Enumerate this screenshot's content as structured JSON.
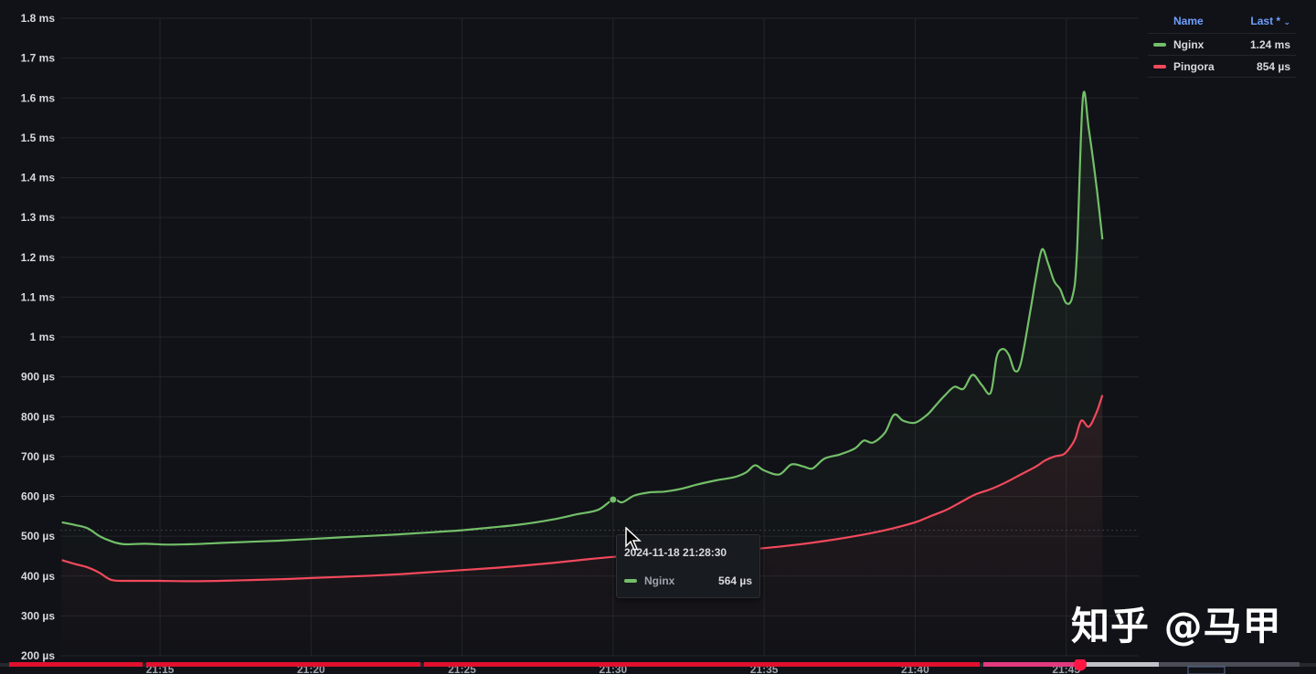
{
  "legend": {
    "header_name": "Name",
    "header_last": "Last *",
    "header_sort_icon": "chevron-down-icon",
    "items": [
      {
        "name": "Nginx",
        "value": "1.24 ms",
        "color": "#73bf69"
      },
      {
        "name": "Pingora",
        "value": "854 µs",
        "color": "#f2495c"
      }
    ]
  },
  "tooltip": {
    "time": "2024-11-18 21:28:30",
    "series": "Nginx",
    "value": "564 µs",
    "color": "#73bf69"
  },
  "watermark": "知乎 @马甲",
  "chart_data": {
    "type": "line",
    "ylim": [
      200,
      1800
    ],
    "y_unit": "µs",
    "y_ticks": [
      {
        "value": 1800,
        "label": "1.8 ms"
      },
      {
        "value": 1700,
        "label": "1.7 ms"
      },
      {
        "value": 1600,
        "label": "1.6 ms"
      },
      {
        "value": 1500,
        "label": "1.5 ms"
      },
      {
        "value": 1400,
        "label": "1.4 ms"
      },
      {
        "value": 1300,
        "label": "1.3 ms"
      },
      {
        "value": 1200,
        "label": "1.2 ms"
      },
      {
        "value": 1100,
        "label": "1.1 ms"
      },
      {
        "value": 1000,
        "label": "1 ms"
      },
      {
        "value": 900,
        "label": "900 µs"
      },
      {
        "value": 800,
        "label": "800 µs"
      },
      {
        "value": 700,
        "label": "700 µs"
      },
      {
        "value": 600,
        "label": "600 µs"
      },
      {
        "value": 500,
        "label": "500 µs"
      },
      {
        "value": 400,
        "label": "400 µs"
      },
      {
        "value": 300,
        "label": "300 µs"
      },
      {
        "value": 200,
        "label": "200 µs"
      }
    ],
    "x_unit": "minutes",
    "xlim": [
      21.7,
      57.4
    ],
    "x_ticks": [
      {
        "value": 25,
        "label": "21:15"
      },
      {
        "value": 30,
        "label": "21:20"
      },
      {
        "value": 35,
        "label": "21:25"
      },
      {
        "value": 40,
        "label": "21:30"
      },
      {
        "value": 45,
        "label": "21:35"
      },
      {
        "value": 50,
        "label": "21:40"
      },
      {
        "value": 55,
        "label": "21:45"
      }
    ],
    "grid": true,
    "legend_position": "top-right",
    "threshold": 515,
    "series": [
      {
        "name": "Nginx",
        "color": "#73bf69",
        "points": [
          [
            21.75,
            535
          ],
          [
            22.2,
            528
          ],
          [
            22.6,
            520
          ],
          [
            23.0,
            500
          ],
          [
            23.4,
            487
          ],
          [
            23.8,
            480
          ],
          [
            24.5,
            481
          ],
          [
            25.2,
            479
          ],
          [
            26.0,
            480
          ],
          [
            27.0,
            483
          ],
          [
            28.0,
            486
          ],
          [
            29.0,
            489
          ],
          [
            30.0,
            493
          ],
          [
            31.0,
            497
          ],
          [
            32.0,
            501
          ],
          [
            33.0,
            505
          ],
          [
            34.0,
            510
          ],
          [
            35.0,
            515
          ],
          [
            36.0,
            522
          ],
          [
            37.0,
            530
          ],
          [
            38.0,
            542
          ],
          [
            38.8,
            555
          ],
          [
            39.5,
            566
          ],
          [
            40.0,
            592
          ],
          [
            40.3,
            585
          ],
          [
            40.7,
            602
          ],
          [
            41.2,
            610
          ],
          [
            41.7,
            612
          ],
          [
            42.2,
            618
          ],
          [
            42.8,
            630
          ],
          [
            43.4,
            640
          ],
          [
            44.0,
            648
          ],
          [
            44.4,
            660
          ],
          [
            44.7,
            678
          ],
          [
            45.0,
            665
          ],
          [
            45.5,
            655
          ],
          [
            45.9,
            680
          ],
          [
            46.3,
            675
          ],
          [
            46.6,
            670
          ],
          [
            47.0,
            695
          ],
          [
            47.5,
            705
          ],
          [
            48.0,
            720
          ],
          [
            48.3,
            740
          ],
          [
            48.6,
            735
          ],
          [
            49.0,
            760
          ],
          [
            49.3,
            805
          ],
          [
            49.6,
            790
          ],
          [
            50.0,
            785
          ],
          [
            50.4,
            805
          ],
          [
            50.7,
            830
          ],
          [
            51.0,
            855
          ],
          [
            51.3,
            875
          ],
          [
            51.6,
            870
          ],
          [
            51.9,
            905
          ],
          [
            52.2,
            880
          ],
          [
            52.5,
            860
          ],
          [
            52.7,
            950
          ],
          [
            52.9,
            970
          ],
          [
            53.1,
            955
          ],
          [
            53.3,
            915
          ],
          [
            53.5,
            935
          ],
          [
            53.8,
            1060
          ],
          [
            54.0,
            1150
          ],
          [
            54.2,
            1220
          ],
          [
            54.4,
            1185
          ],
          [
            54.6,
            1140
          ],
          [
            54.8,
            1120
          ],
          [
            55.0,
            1085
          ],
          [
            55.2,
            1100
          ],
          [
            55.35,
            1200
          ],
          [
            55.55,
            1600
          ],
          [
            55.75,
            1520
          ],
          [
            56.0,
            1380
          ],
          [
            56.2,
            1245
          ]
        ]
      },
      {
        "name": "Pingora",
        "color": "#f2495c",
        "points": [
          [
            21.75,
            440
          ],
          [
            22.2,
            430
          ],
          [
            22.6,
            422
          ],
          [
            23.0,
            408
          ],
          [
            23.4,
            390
          ],
          [
            24.0,
            388
          ],
          [
            25.0,
            388
          ],
          [
            26.0,
            387
          ],
          [
            27.0,
            388
          ],
          [
            28.0,
            390
          ],
          [
            29.0,
            392
          ],
          [
            30.0,
            395
          ],
          [
            31.0,
            398
          ],
          [
            32.0,
            401
          ],
          [
            33.0,
            405
          ],
          [
            34.0,
            410
          ],
          [
            35.0,
            415
          ],
          [
            36.0,
            420
          ],
          [
            37.0,
            426
          ],
          [
            38.0,
            433
          ],
          [
            39.0,
            441
          ],
          [
            40.0,
            448
          ],
          [
            41.0,
            452
          ],
          [
            42.0,
            456
          ],
          [
            43.0,
            460
          ],
          [
            44.0,
            464
          ],
          [
            45.0,
            470
          ],
          [
            46.0,
            478
          ],
          [
            47.0,
            488
          ],
          [
            48.0,
            500
          ],
          [
            49.0,
            515
          ],
          [
            50.0,
            535
          ],
          [
            50.5,
            550
          ],
          [
            51.0,
            565
          ],
          [
            51.5,
            585
          ],
          [
            52.0,
            605
          ],
          [
            52.5,
            618
          ],
          [
            53.0,
            635
          ],
          [
            53.5,
            655
          ],
          [
            54.0,
            675
          ],
          [
            54.3,
            690
          ],
          [
            54.6,
            700
          ],
          [
            54.9,
            705
          ],
          [
            55.1,
            720
          ],
          [
            55.3,
            745
          ],
          [
            55.5,
            790
          ],
          [
            55.75,
            775
          ],
          [
            56.0,
            810
          ],
          [
            56.2,
            854
          ]
        ]
      }
    ]
  }
}
